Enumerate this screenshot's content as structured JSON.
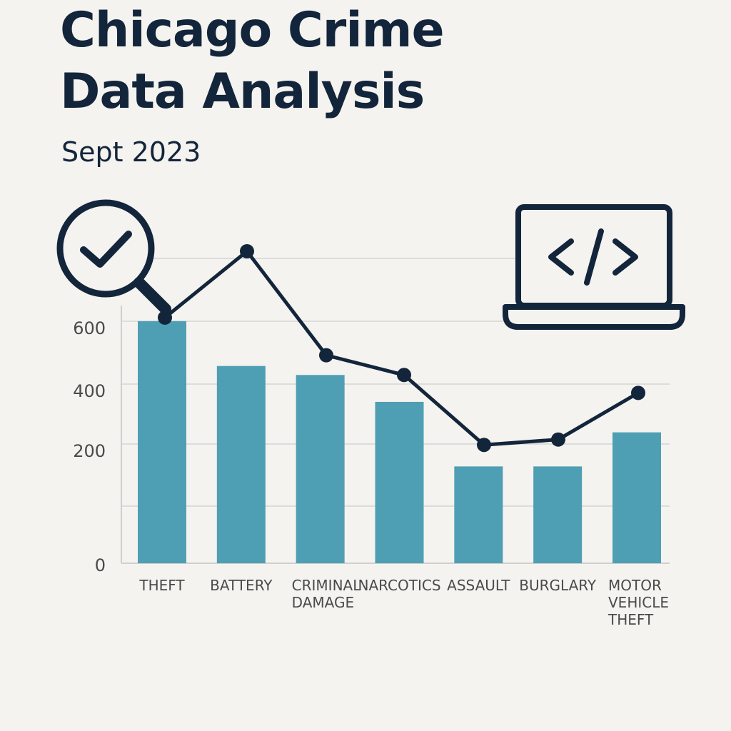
{
  "header": {
    "title_line1": "Chicago Crime",
    "title_line2": "Data Analysis",
    "subtitle": "Sept 2023"
  },
  "icons": {
    "magnifier": "magnifier-check-icon",
    "laptop": "laptop-code-icon"
  },
  "colors": {
    "bar": "#4e9fb3",
    "line": "#13253b",
    "text": "#13253b",
    "axis_text": "#4a4a4a",
    "grid": "#dcdcdc",
    "background": "#f5f3ef"
  },
  "chart_data": {
    "type": "bar",
    "categories": [
      "THEFT",
      "BATTERY",
      "CRIMINAL DAMAGE",
      "NARCOTICS",
      "ASSAULT",
      "BURGLARY",
      "MOTOR VEHICLE THEFT"
    ],
    "category_lines": [
      [
        "THEFT"
      ],
      [
        "BATTERY"
      ],
      [
        "CRIMINAL",
        "DAMAGE"
      ],
      [
        "NARCOTICS"
      ],
      [
        "ASSAULT"
      ],
      [
        "BURGLARY"
      ],
      [
        "MOTOR",
        "VEHICLE",
        "THEFT"
      ]
    ],
    "series": [
      {
        "type": "bar",
        "values": [
          675,
          550,
          525,
          450,
          270,
          270,
          365
        ]
      },
      {
        "type": "line",
        "values": [
          685,
          870,
          580,
          525,
          330,
          345,
          475
        ]
      }
    ],
    "yticks": [
      "600",
      "400",
      "200",
      "0"
    ],
    "ytick_values": [
      600,
      400,
      200,
      0
    ],
    "ylim": [
      0,
      850
    ],
    "grid": true,
    "legend": "none"
  }
}
